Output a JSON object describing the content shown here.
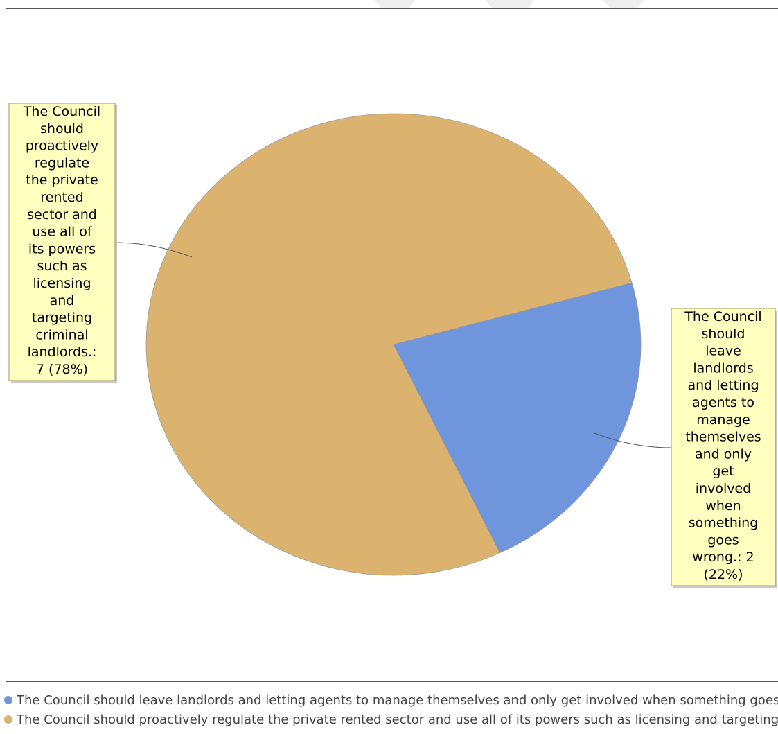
{
  "chart_data": {
    "type": "pie",
    "title": "",
    "slices": [
      {
        "name": "The Council should leave landlords and letting agents to manage themselves and only get involved when something goes wrong.",
        "value": 2,
        "percent": 22,
        "label_lines": [
          "The Council",
          "should",
          "leave",
          "landlords",
          "and letting",
          "agents to",
          "manage",
          "themselves",
          "and only",
          "get",
          "involved",
          "when",
          "something",
          "goes",
          "wrong.: 2",
          "(22%)"
        ],
        "color": "#6f96dc"
      },
      {
        "name": "The Council should proactively regulate the private rented sector and use all of its powers such as licensing and targeting criminal landlords.",
        "value": 7,
        "percent": 78,
        "label_lines": [
          "The Council",
          "should",
          "proactively",
          "regulate",
          "the private",
          "rented",
          "sector and",
          "use all of",
          "its powers",
          "such as",
          "licensing",
          "and",
          "targeting",
          "criminal",
          "landlords.:",
          "7 (78%)"
        ],
        "color": "#dcb36e"
      }
    ],
    "legend_position": "bottom"
  },
  "legend": {
    "items": [
      {
        "text": "The Council should leave landlords and letting agents to manage themselves and only get involved when something goes wrong.",
        "color": "#6f96dc"
      },
      {
        "text": "The Council should proactively regulate the private rented sector and use all of its powers such as licensing and targeting criminal landlords.",
        "color": "#dcb36e"
      }
    ]
  },
  "colors": {
    "label_box_fill": "#ffffc0",
    "label_box_border": "#9a9a6a",
    "slice_outline": "#999999",
    "connector": "#555555"
  }
}
